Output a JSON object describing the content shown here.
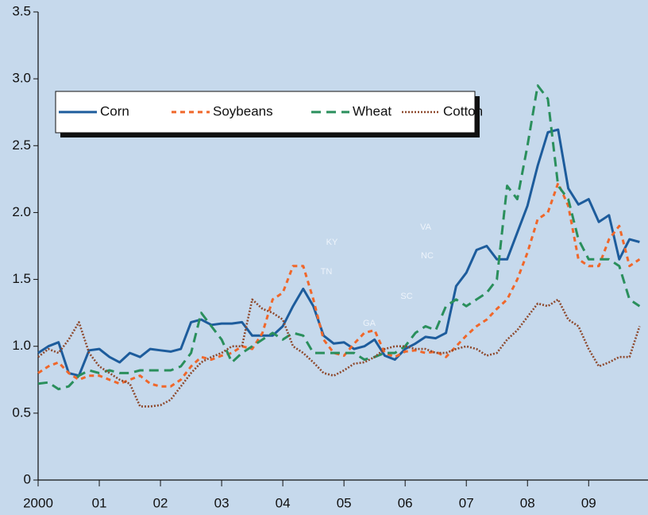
{
  "chart_data": {
    "type": "line",
    "x": [
      2000,
      2000.167,
      2000.333,
      2000.5,
      2000.667,
      2000.833,
      2001,
      2001.167,
      2001.333,
      2001.5,
      2001.667,
      2001.833,
      2002,
      2002.167,
      2002.333,
      2002.5,
      2002.667,
      2002.833,
      2003,
      2003.167,
      2003.333,
      2003.5,
      2003.667,
      2003.833,
      2004,
      2004.167,
      2004.333,
      2004.5,
      2004.667,
      2004.833,
      2005,
      2005.167,
      2005.333,
      2005.5,
      2005.667,
      2005.833,
      2006,
      2006.167,
      2006.333,
      2006.5,
      2006.667,
      2006.833,
      2007,
      2007.167,
      2007.333,
      2007.5,
      2007.667,
      2007.833,
      2008,
      2008.167,
      2008.333,
      2008.5,
      2008.667,
      2008.833,
      2009,
      2009.167,
      2009.333,
      2009.5,
      2009.667,
      2009.833
    ],
    "series": [
      {
        "name": "Corn",
        "color": "#1d5c9c",
        "dash": "solid",
        "values": [
          0.95,
          1.0,
          1.03,
          0.8,
          0.78,
          0.97,
          0.98,
          0.92,
          0.88,
          0.95,
          0.92,
          0.98,
          0.97,
          0.96,
          0.98,
          1.18,
          1.2,
          1.16,
          1.17,
          1.17,
          1.18,
          1.08,
          1.08,
          1.08,
          1.15,
          1.3,
          1.43,
          1.3,
          1.08,
          1.02,
          1.03,
          0.98,
          1.0,
          1.05,
          0.93,
          0.9,
          0.98,
          1.02,
          1.07,
          1.06,
          1.1,
          1.45,
          1.55,
          1.72,
          1.75,
          1.65,
          1.65,
          1.85,
          2.05,
          2.35,
          2.6,
          2.62,
          2.18,
          2.06,
          2.1,
          1.93,
          1.98,
          1.65,
          1.8,
          1.78
        ]
      },
      {
        "name": "Soybeans",
        "color": "#f0672a",
        "dash": "dashed",
        "values": [
          0.8,
          0.85,
          0.88,
          0.8,
          0.75,
          0.78,
          0.78,
          0.75,
          0.72,
          0.75,
          0.78,
          0.72,
          0.7,
          0.7,
          0.75,
          0.85,
          0.92,
          0.9,
          0.93,
          0.95,
          1.0,
          0.98,
          1.1,
          1.35,
          1.4,
          1.6,
          1.6,
          1.35,
          1.05,
          0.95,
          0.93,
          1.02,
          1.1,
          1.12,
          0.95,
          0.92,
          0.96,
          0.97,
          0.95,
          0.96,
          0.92,
          1.0,
          1.08,
          1.15,
          1.2,
          1.28,
          1.35,
          1.5,
          1.7,
          1.95,
          2.0,
          2.22,
          2.05,
          1.65,
          1.6,
          1.6,
          1.8,
          1.9,
          1.6,
          1.65
        ]
      },
      {
        "name": "Wheat",
        "color": "#2a8f5c",
        "dash": "longdash",
        "values": [
          0.72,
          0.73,
          0.68,
          0.7,
          0.78,
          0.82,
          0.8,
          0.82,
          0.8,
          0.8,
          0.82,
          0.82,
          0.82,
          0.82,
          0.85,
          0.95,
          1.25,
          1.15,
          1.05,
          0.88,
          0.95,
          1.0,
          1.05,
          1.1,
          1.05,
          1.1,
          1.08,
          0.95,
          0.95,
          0.95,
          0.95,
          0.95,
          0.9,
          0.92,
          0.95,
          0.95,
          1.0,
          1.1,
          1.15,
          1.12,
          1.3,
          1.35,
          1.3,
          1.35,
          1.4,
          1.5,
          2.2,
          2.1,
          2.5,
          2.95,
          2.85,
          2.2,
          2.1,
          1.8,
          1.65,
          1.65,
          1.65,
          1.6,
          1.35,
          1.3
        ]
      },
      {
        "name": "Cotton",
        "color": "#8e4a2e",
        "dash": "dotted",
        "values": [
          0.92,
          0.98,
          0.95,
          1.05,
          1.18,
          0.95,
          0.85,
          0.8,
          0.75,
          0.72,
          0.55,
          0.55,
          0.56,
          0.6,
          0.7,
          0.8,
          0.88,
          0.92,
          0.95,
          1.0,
          1.0,
          1.35,
          1.28,
          1.25,
          1.2,
          1.0,
          0.95,
          0.88,
          0.8,
          0.78,
          0.82,
          0.87,
          0.88,
          0.92,
          0.98,
          1.0,
          1.0,
          0.98,
          0.98,
          0.95,
          0.95,
          0.98,
          1.0,
          0.98,
          0.93,
          0.95,
          1.05,
          1.12,
          1.22,
          1.32,
          1.3,
          1.35,
          1.2,
          1.15,
          0.98,
          0.85,
          0.88,
          0.92,
          0.92,
          1.15
        ]
      }
    ],
    "xlim": [
      2000,
      2009.97
    ],
    "xticks": [
      {
        "value": 2000,
        "label": "2000"
      },
      {
        "value": 2001,
        "label": "01"
      },
      {
        "value": 2002,
        "label": "02"
      },
      {
        "value": 2003,
        "label": "03"
      },
      {
        "value": 2004,
        "label": "04"
      },
      {
        "value": 2005,
        "label": "05"
      },
      {
        "value": 2006,
        "label": "06"
      },
      {
        "value": 2007,
        "label": "07"
      },
      {
        "value": 2008,
        "label": "08"
      },
      {
        "value": 2009,
        "label": "09"
      }
    ],
    "ylim": [
      0,
      3.5
    ],
    "yticks": [
      0,
      0.5,
      {
        "value": 1,
        "label": "1.0"
      },
      1.5,
      {
        "value": 2,
        "label": "2.0"
      },
      2.5,
      {
        "value": 3,
        "label": "3.0"
      },
      3.5
    ],
    "annotations": [
      "KY",
      "TN",
      "VA",
      "NC",
      "SC",
      "GA"
    ],
    "legend": "upper left",
    "grid": false
  }
}
